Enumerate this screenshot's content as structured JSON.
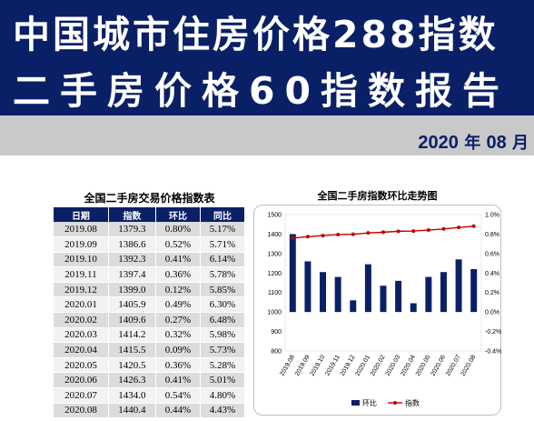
{
  "header": {
    "title_line1": "中国城市住房价格288指数",
    "title_line2": "二手房价格60指数报告",
    "report_year": "2020",
    "year_char": "年",
    "report_month": "08",
    "month_char": "月"
  },
  "table": {
    "title": "全国二手房交易价格指数表",
    "columns": [
      "日期",
      "指数",
      "环比",
      "同比"
    ],
    "rows": [
      [
        "2019.08",
        "1379.3",
        "0.80%",
        "5.17%"
      ],
      [
        "2019.09",
        "1386.6",
        "0.52%",
        "5.71%"
      ],
      [
        "2019.10",
        "1392.3",
        "0.41%",
        "6.14%"
      ],
      [
        "2019.11",
        "1397.4",
        "0.36%",
        "5.78%"
      ],
      [
        "2019.12",
        "1399.0",
        "0.12%",
        "5.85%"
      ],
      [
        "2020.01",
        "1405.9",
        "0.49%",
        "6.30%"
      ],
      [
        "2020.02",
        "1409.6",
        "0.27%",
        "6.48%"
      ],
      [
        "2020.03",
        "1414.2",
        "0.32%",
        "5.98%"
      ],
      [
        "2020.04",
        "1415.5",
        "0.09%",
        "5.73%"
      ],
      [
        "2020.05",
        "1420.5",
        "0.36%",
        "5.28%"
      ],
      [
        "2020.06",
        "1426.3",
        "0.41%",
        "5.01%"
      ],
      [
        "2020.07",
        "1434.0",
        "0.54%",
        "4.80%"
      ],
      [
        "2020.08",
        "1440.4",
        "0.44%",
        "4.43%"
      ]
    ]
  },
  "chart_data": {
    "type": "bar",
    "title": "全国二手房指数环比走势图",
    "categories": [
      "2019.08",
      "2019.09",
      "2019.10",
      "2019.11",
      "2019.12",
      "2020.01",
      "2020.02",
      "2020.03",
      "2020.04",
      "2020.05",
      "2020.06",
      "2020.07",
      "2020.08"
    ],
    "series": [
      {
        "name": "环比",
        "type": "bar",
        "axis": "right",
        "unit": "%",
        "values": [
          0.8,
          0.52,
          0.41,
          0.36,
          0.12,
          0.49,
          0.27,
          0.32,
          0.09,
          0.36,
          0.41,
          0.54,
          0.44
        ]
      },
      {
        "name": "指数",
        "type": "line",
        "axis": "left",
        "values": [
          1379.3,
          1386.6,
          1392.3,
          1397.4,
          1399.0,
          1405.9,
          1409.6,
          1414.2,
          1415.5,
          1420.5,
          1426.3,
          1434.0,
          1440.4
        ]
      }
    ],
    "y_left": {
      "min": 800,
      "max": 1500,
      "step": 100,
      "ticks": [
        "800",
        "900",
        "1000",
        "1100",
        "1200",
        "1300",
        "1400",
        "1500"
      ]
    },
    "y_right": {
      "min": -0.4,
      "max": 1.0,
      "step": 0.2,
      "ticks": [
        "-0.4%",
        "-0.2%",
        "0.0%",
        "0.2%",
        "0.4%",
        "0.6%",
        "0.8%",
        "1.0%"
      ]
    },
    "legend_position": "bottom",
    "colors": {
      "bar": "#0a2066",
      "line": "#c00000"
    }
  }
}
